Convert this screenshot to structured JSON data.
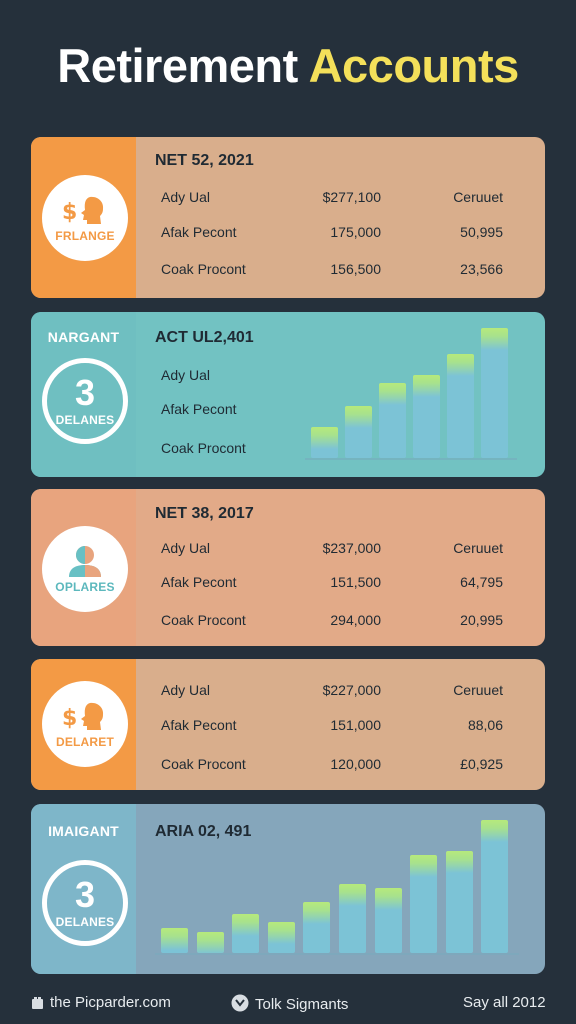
{
  "title": {
    "word1": "Retirement",
    "word2": "Accounts"
  },
  "row_labels": [
    "Ady Ual",
    "Afak Pecont",
    "Coak Procont"
  ],
  "cards": [
    {
      "side_label": "",
      "badge_label": "FRLANGE",
      "header": "NET 52, 2021",
      "rows": [
        {
          "label": "Ady Ual",
          "value": "$277,100",
          "extra": "Ceruuet"
        },
        {
          "label": "Afak Pecont",
          "value": "175,000",
          "extra": "50,995"
        },
        {
          "label": "Coak Procont",
          "value": "156,500",
          "extra": "23,566"
        }
      ]
    },
    {
      "side_label": "NARGANT",
      "badge_number": "3",
      "badge_label": "DELANES",
      "header": "ACT UL2,401",
      "rows": [
        {
          "label": "Ady Ual"
        },
        {
          "label": "Afak Pecont"
        },
        {
          "label": "Coak Procont"
        }
      ],
      "bars": [
        0.24,
        0.4,
        0.58,
        0.64,
        0.8,
        1.0
      ]
    },
    {
      "side_label": "",
      "badge_label": "OPLARES",
      "header": "NET 38, 2017",
      "rows": [
        {
          "label": "Ady Ual",
          "value": "$237,000",
          "extra": "Ceruuet"
        },
        {
          "label": "Afak Pecont",
          "value": "151,500",
          "extra": "64,795"
        },
        {
          "label": "Coak Procont",
          "value": "294,000",
          "extra": "20,995"
        }
      ]
    },
    {
      "side_label": "",
      "badge_label": "DELARET",
      "header": "",
      "rows": [
        {
          "label": "Ady Ual",
          "value": "$227,000",
          "extra": "Ceruuet"
        },
        {
          "label": "Afak Pecont",
          "value": "151,000",
          "extra": "88,06"
        },
        {
          "label": "Coak Procont",
          "value": "120,000",
          "extra": "£0,925"
        }
      ]
    },
    {
      "side_label": "IMAIGANT",
      "badge_number": "3",
      "badge_label": "DELANES",
      "header": "ARIA 02, 491",
      "bars": [
        0.19,
        0.16,
        0.29,
        0.23,
        0.38,
        0.52,
        0.49,
        0.74,
        0.77,
        1.0
      ]
    }
  ],
  "footer": {
    "left": "the Picparder.com",
    "center": "Tolk Sigmants",
    "right": "Say all 2012"
  },
  "colors": {
    "background": "#25303b",
    "orange_side": "#f39a45",
    "peach_panel": "#d9ae8c",
    "teal_panel": "#72c2c2",
    "blue_panel": "#85a6bb",
    "bar": "#7cc3d6",
    "bar_top": "#b6ea7c",
    "title_accent": "#f4e05a"
  },
  "icons": [
    "dollar-head-icon",
    "person-icon",
    "device-icon",
    "chat-icon"
  ]
}
